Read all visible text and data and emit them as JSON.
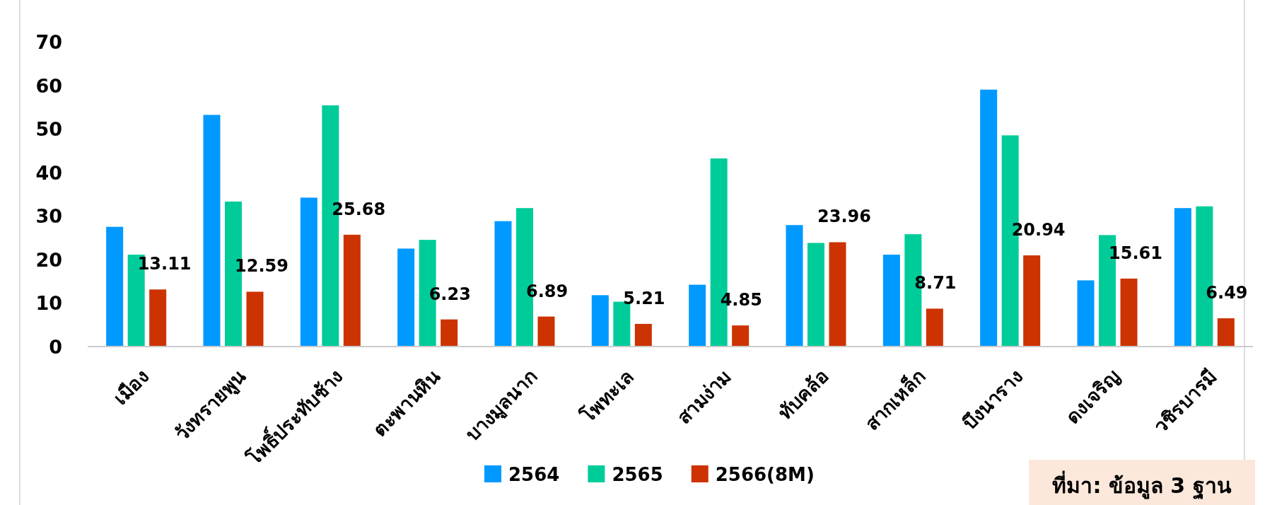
{
  "chart_data": {
    "type": "bar",
    "categories": [
      "เมือง",
      "วังทรายพูน",
      "โพธิ์ประทับช้าง",
      "ตะพานหิน",
      "บางมูลนาก",
      "โพทะเล",
      "สามง่าม",
      "ทับคล้อ",
      "สากเหล็ก",
      "บึงนาราง",
      "ดงเจริญ",
      "วชิรบารมี"
    ],
    "series": [
      {
        "name": "2564",
        "color": "#0099ff",
        "values": [
          27.5,
          53.2,
          34.2,
          22.5,
          28.8,
          11.8,
          14.2,
          27.9,
          21.1,
          59.0,
          15.2,
          31.8
        ]
      },
      {
        "name": "2565",
        "color": "#00cc99",
        "values": [
          21.1,
          33.3,
          55.4,
          24.5,
          31.8,
          10.3,
          43.2,
          23.8,
          25.8,
          48.5,
          25.6,
          32.2
        ]
      },
      {
        "name": "2566(8M)",
        "color": "#cc3300",
        "values": [
          13.11,
          12.59,
          25.68,
          6.23,
          6.89,
          5.21,
          4.85,
          23.96,
          8.71,
          20.94,
          15.61,
          6.49
        ],
        "value_labels": [
          "13.11",
          "12.59",
          "25.68",
          "6.23",
          "6.89",
          "5.21",
          "4.85",
          "23.96",
          "8.71",
          "20.94",
          "15.61",
          "6.49"
        ]
      }
    ],
    "ylim": [
      0,
      70
    ],
    "yticks": [
      0,
      10,
      20,
      30,
      40,
      50,
      60,
      70
    ],
    "legend": "bottom",
    "annotations": [
      "ที่มา: ข้อมูล 3 ฐาน"
    ]
  }
}
